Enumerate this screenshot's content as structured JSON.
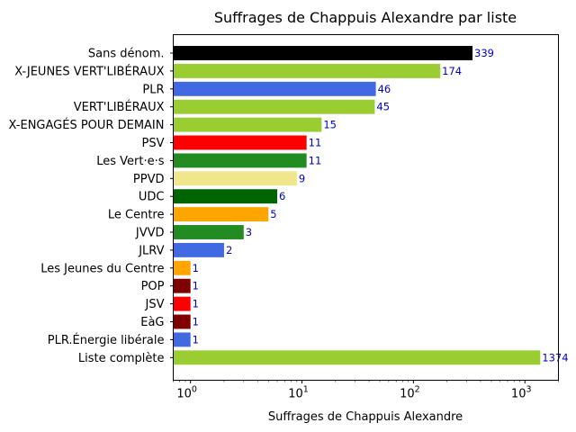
{
  "chart_data": {
    "type": "bar",
    "orientation": "horizontal",
    "title": "Suffrages de Chappuis Alexandre par liste",
    "xlabel": "Suffrages de Chappuis Alexandre",
    "ylabel": "",
    "xscale": "log",
    "xlim": [
      0.7,
      2000
    ],
    "xticks": [
      {
        "value": 1,
        "base": "10",
        "exp": "0"
      },
      {
        "value": 10,
        "base": "10",
        "exp": "1"
      },
      {
        "value": 100,
        "base": "10",
        "exp": "2"
      },
      {
        "value": 1000,
        "base": "10",
        "exp": "3"
      }
    ],
    "grid": false,
    "bars": [
      {
        "category": "Sans dénom.",
        "value": 339,
        "label": "339",
        "color": "#000000"
      },
      {
        "category": "JEUNES-JEUNES VERT'LIBÉRAUX",
        "display_category": "X-JEUNES VERT'LIBÉRAUX",
        "value": 174,
        "label": "174",
        "color": "#9acd32"
      },
      {
        "category": "PLR",
        "value": 46,
        "label": "46",
        "color": "#4169e1"
      },
      {
        "category": "VERT'LIBÉRAUX",
        "value": 45,
        "label": "45",
        "color": "#9acd32"
      },
      {
        "category": "VERT'LIBÉRAUX-ENGAGÉS POUR DEMAIN",
        "display_category": "X-ENGAGÉS POUR DEMAIN",
        "value": 15,
        "label": "15",
        "color": "#9acd32"
      },
      {
        "category": "PSV",
        "value": 11,
        "label": "11",
        "color": "#ff0000"
      },
      {
        "category": "Les Vert·e·s",
        "value": 11,
        "label": "11",
        "color": "#228b22"
      },
      {
        "category": "PPVD",
        "value": 9,
        "label": "9",
        "color": "#f0e68c"
      },
      {
        "category": "UDC",
        "value": 6,
        "label": "6",
        "color": "#006400"
      },
      {
        "category": "Le Centre",
        "value": 5,
        "label": "5",
        "color": "#ffa500"
      },
      {
        "category": "JVVD",
        "value": 3,
        "label": "3",
        "color": "#228b22"
      },
      {
        "category": "JLRV",
        "value": 2,
        "label": "2",
        "color": "#4169e1"
      },
      {
        "category": "Les Jeunes du Centre",
        "value": 1,
        "label": "1",
        "color": "#ffa500"
      },
      {
        "category": "POP",
        "value": 1,
        "label": "1",
        "color": "#800000"
      },
      {
        "category": "JSV",
        "value": 1,
        "label": "1",
        "color": "#ff0000"
      },
      {
        "category": "EàG",
        "value": 1,
        "label": "1",
        "color": "#800000"
      },
      {
        "category": "PLR.Énergie libérale",
        "value": 1,
        "label": "1",
        "color": "#4169e1"
      },
      {
        "category": "Liste complète",
        "value": 1374,
        "label": "1374",
        "color": "#9acd32"
      }
    ]
  }
}
